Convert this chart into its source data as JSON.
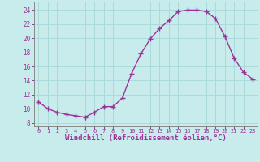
{
  "x": [
    0,
    1,
    2,
    3,
    4,
    5,
    6,
    7,
    8,
    9,
    10,
    11,
    12,
    13,
    14,
    15,
    16,
    17,
    18,
    19,
    20,
    21,
    22,
    23
  ],
  "y": [
    11.0,
    10.0,
    9.5,
    9.2,
    9.0,
    8.8,
    9.5,
    10.3,
    10.3,
    11.5,
    15.0,
    17.8,
    19.9,
    21.4,
    22.5,
    23.8,
    24.0,
    24.0,
    23.8,
    22.8,
    20.3,
    17.2,
    15.2,
    14.2
  ],
  "line_color": "#993399",
  "marker": "+",
  "marker_size": 4,
  "marker_linewidth": 1.0,
  "background_color": "#c8ecec",
  "grid_color": "#aadada",
  "xlabel": "Windchill (Refroidissement éolien,°C)",
  "xlabel_fontsize": 6.5,
  "ylabel_ticks": [
    8,
    10,
    12,
    14,
    16,
    18,
    20,
    22,
    24
  ],
  "xtick_labels": [
    "0",
    "1",
    "2",
    "3",
    "4",
    "5",
    "6",
    "7",
    "8",
    "9",
    "10",
    "11",
    "12",
    "13",
    "14",
    "15",
    "16",
    "17",
    "18",
    "19",
    "20",
    "21",
    "22",
    "23"
  ],
  "ylim": [
    7.5,
    25.2
  ],
  "xlim": [
    -0.5,
    23.5
  ],
  "ytick_fontsize": 5.5,
  "xtick_fontsize": 5.0,
  "spine_color": "#888888",
  "line_width": 1.0
}
